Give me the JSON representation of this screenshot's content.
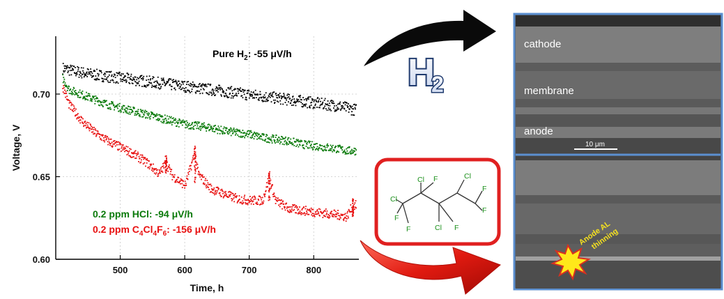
{
  "chart_data": {
    "type": "scatter",
    "title": "",
    "xlabel": "Time, h",
    "ylabel": "Voltage, V",
    "xlim": [
      400,
      870
    ],
    "ylim": [
      0.6,
      0.735
    ],
    "xticks": [
      500,
      600,
      700,
      800
    ],
    "yticks": [
      "0.60",
      "0.65",
      "0.70"
    ],
    "grid": true,
    "series": [
      {
        "name": "Pure H2",
        "color": "#000000",
        "x": [
          410,
          430,
          460,
          500,
          520,
          540,
          560,
          580,
          600,
          620,
          640,
          660,
          680,
          700,
          720,
          740,
          760,
          780,
          800,
          820,
          840,
          850,
          860,
          865
        ],
        "y": [
          0.716,
          0.714,
          0.712,
          0.71,
          0.709,
          0.708,
          0.707,
          0.706,
          0.705,
          0.704,
          0.703,
          0.702,
          0.701,
          0.7,
          0.699,
          0.698,
          0.697,
          0.696,
          0.695,
          0.694,
          0.693,
          0.692,
          0.691,
          0.691
        ]
      },
      {
        "name": "0.2 ppm HCl",
        "color": "#0a7a0a",
        "x": [
          410,
          420,
          440,
          460,
          480,
          500,
          520,
          540,
          560,
          580,
          600,
          620,
          640,
          660,
          680,
          700,
          720,
          740,
          760,
          780,
          800,
          820,
          840,
          850,
          860,
          865
        ],
        "y": [
          0.71,
          0.703,
          0.7,
          0.697,
          0.694,
          0.692,
          0.69,
          0.688,
          0.686,
          0.684,
          0.682,
          0.681,
          0.68,
          0.678,
          0.677,
          0.676,
          0.674,
          0.673,
          0.672,
          0.67,
          0.669,
          0.668,
          0.667,
          0.666,
          0.666,
          0.666
        ]
      },
      {
        "name": "0.2 ppm C4Cl4F6",
        "color": "#e81010",
        "x": [
          410,
          420,
          440,
          460,
          480,
          500,
          520,
          540,
          560,
          570,
          580,
          600,
          615,
          620,
          640,
          660,
          680,
          700,
          720,
          730,
          740,
          760,
          780,
          800,
          820,
          840,
          850,
          860,
          865
        ],
        "y": [
          0.705,
          0.694,
          0.684,
          0.677,
          0.672,
          0.668,
          0.664,
          0.659,
          0.652,
          0.659,
          0.651,
          0.645,
          0.665,
          0.652,
          0.643,
          0.64,
          0.637,
          0.636,
          0.636,
          0.65,
          0.636,
          0.631,
          0.63,
          0.629,
          0.628,
          0.627,
          0.626,
          0.633,
          0.633
        ]
      }
    ],
    "annotations": [
      {
        "text_pre": "Pure H",
        "sub": "2",
        "text_post": ": -55 μV/h",
        "color": "#111111"
      },
      {
        "text_pre": "0.2 ppm HCl: -94 μV/h",
        "color": "#0a7a0a"
      },
      {
        "text_pre": "0.2 ppm C",
        "sub1": "4",
        "mid1": "Cl",
        "sub2": "4",
        "mid2": "F",
        "sub3": "6",
        "text_post": ": -156 μV/h",
        "color": "#e81010"
      }
    ]
  },
  "h2_label": {
    "main": "H",
    "sub": "2"
  },
  "molecule": {
    "atoms": [
      "Cl",
      "F",
      "Cl",
      "F",
      "Cl",
      "F",
      "F",
      "F",
      "Cl",
      "F"
    ]
  },
  "sem": {
    "top": {
      "cathode": "cathode",
      "membrane": "membrane",
      "anode": "anode",
      "scale": "10 μm"
    },
    "bottom": {
      "thinning_line1": "Anode AL",
      "thinning_line2": "thinning"
    }
  },
  "colors": {
    "pure": "#000000",
    "hcl": "#0a7a0a",
    "c4": "#e81010",
    "molecule_border": "#e02020",
    "sem_border": "#5b8fd0",
    "arrow_black": "#0a0a0a",
    "arrow_red": "#e01a10"
  }
}
